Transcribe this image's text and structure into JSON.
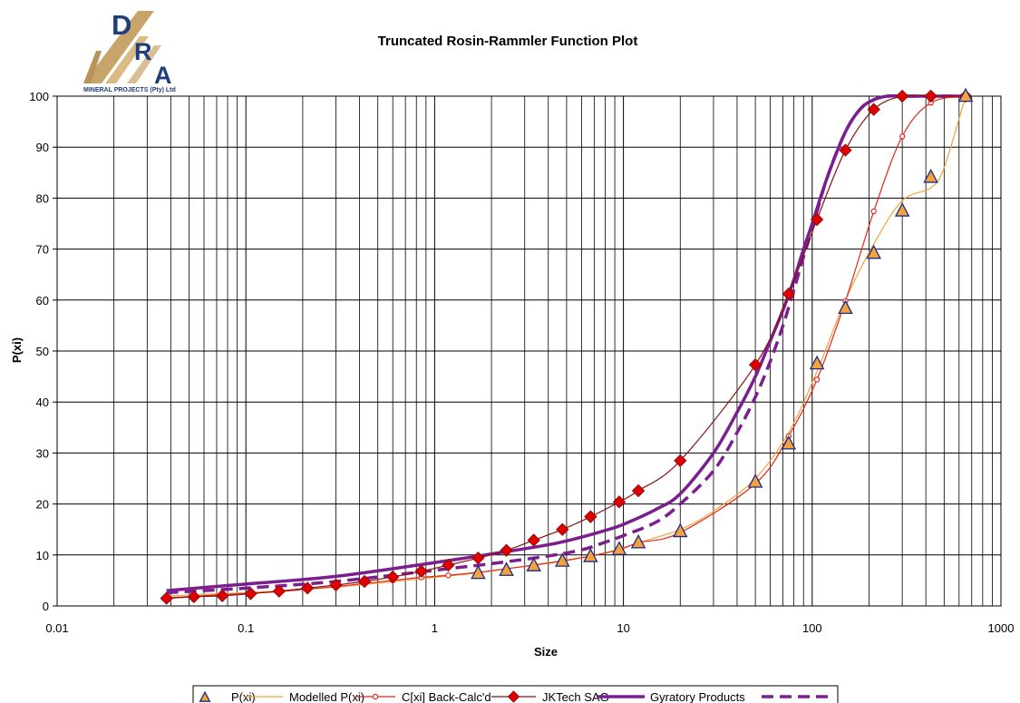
{
  "logo": {
    "letter_d": "D",
    "letter_r": "R",
    "letter_a": "A",
    "caption": "MINERAL PROJECTS (Pty) Ltd",
    "colors": {
      "gold": "#c8a46a",
      "navy": "#1f3f7a"
    }
  },
  "chart_data": {
    "type": "line",
    "title": "Truncated Rosin-Rammler Function Plot",
    "xlabel": "Size",
    "ylabel": "P(xi)",
    "x_scale": "log",
    "xlim": [
      0.01,
      1000
    ],
    "ylim": [
      0,
      100
    ],
    "x_ticks": [
      0.01,
      0.1,
      1,
      10,
      100,
      1000
    ],
    "x_tick_labels": [
      "0.01",
      "0.1",
      "1",
      "10",
      "100",
      "1000"
    ],
    "y_ticks": [
      0,
      10,
      20,
      30,
      40,
      50,
      60,
      70,
      80,
      90,
      100
    ],
    "y_tick_labels": [
      "0",
      "10",
      "20",
      "30",
      "40",
      "50",
      "60",
      "70",
      "80",
      "90",
      "100"
    ],
    "grid": true,
    "legend_position": "bottom",
    "series": [
      {
        "name": "P(xi)",
        "style": "markers",
        "marker": "triangle",
        "color": "#f4a23a",
        "edge_color": "#1a2a8c",
        "x": [
          1.7,
          2.4,
          3.35,
          4.75,
          6.7,
          9.5,
          12,
          20,
          50,
          75,
          106,
          150,
          212,
          300,
          425,
          650
        ],
        "y": [
          6.4,
          7.0,
          7.9,
          8.8,
          9.7,
          11.1,
          12.4,
          14.6,
          24.3,
          31.8,
          47.5,
          58.4,
          69.2,
          77.5,
          84.1,
          100
        ]
      },
      {
        "name": "Modelled P(xi)",
        "style": "line",
        "color": "#f4a23a",
        "x": [
          0.038,
          0.1,
          0.3,
          1,
          1.7,
          3,
          6.7,
          9.5,
          12,
          20,
          30,
          50,
          75,
          106,
          150,
          212,
          300,
          425,
          500,
          650
        ],
        "y": [
          2.0,
          2.6,
          3.7,
          5.6,
          6.5,
          7.8,
          9.8,
          11.2,
          12.4,
          15.0,
          18.6,
          25.0,
          34.0,
          46.0,
          60.0,
          71.0,
          79.5,
          82.0,
          86.0,
          100
        ]
      },
      {
        "name": "C[xi] Back-Calc'd",
        "style": "line+markers",
        "marker": "circle",
        "color": "#e6241e",
        "marker_fill": "#ffffff",
        "x": [
          0.038,
          0.053,
          0.075,
          0.106,
          0.15,
          0.212,
          0.3,
          0.425,
          0.6,
          0.85,
          1.18,
          1.7,
          2.4,
          3.35,
          4.75,
          6.7,
          9.5,
          12,
          20,
          50,
          75,
          106,
          150,
          212,
          300,
          425,
          650
        ],
        "y": [
          1.6,
          1.9,
          2.2,
          2.5,
          2.8,
          3.3,
          3.8,
          4.4,
          5.0,
          5.6,
          6.0,
          6.6,
          7.3,
          8.0,
          8.8,
          9.8,
          11.0,
          12.4,
          14.4,
          24.0,
          33.3,
          44.4,
          59.8,
          77.4,
          92.1,
          98.7,
          100
        ]
      },
      {
        "name": "JKTech SAG",
        "style": "line+markers",
        "marker": "diamond",
        "color": "#8b1010",
        "marker_fill": "#e00000",
        "x": [
          0.038,
          0.053,
          0.075,
          0.106,
          0.15,
          0.212,
          0.3,
          0.425,
          0.6,
          0.85,
          1.18,
          1.7,
          2.4,
          3.35,
          4.75,
          6.7,
          9.5,
          12,
          20,
          50,
          75,
          106,
          150,
          212,
          300,
          425,
          650
        ],
        "y": [
          1.5,
          1.8,
          2.0,
          2.4,
          2.9,
          3.5,
          4.1,
          4.8,
          5.7,
          6.8,
          8.0,
          9.4,
          10.9,
          12.9,
          15.0,
          17.5,
          20.4,
          22.6,
          28.5,
          47.3,
          61.2,
          75.8,
          89.4,
          97.4,
          100,
          100,
          100
        ]
      },
      {
        "name": "Gyratory Products",
        "style": "line",
        "dash": "solid",
        "width": 3.5,
        "color": "#7b1f8f",
        "x": [
          0.038,
          0.1,
          0.3,
          1,
          2,
          4,
          6,
          8,
          10,
          15,
          20,
          30,
          40,
          50,
          60,
          70,
          80,
          90,
          100,
          120,
          150,
          180,
          212,
          250,
          300,
          400,
          650
        ],
        "y": [
          3.0,
          4.3,
          5.8,
          8.5,
          10.2,
          12.0,
          13.5,
          14.8,
          16.0,
          19.0,
          22.0,
          30.0,
          38.0,
          45.0,
          52.0,
          58.0,
          64.0,
          70.0,
          75.0,
          84.0,
          93.0,
          97.5,
          99.3,
          100,
          100,
          100,
          100
        ]
      },
      {
        "name": "",
        "legend_entry": "dashed",
        "style": "line",
        "dash": "dashed",
        "width": 3.5,
        "color": "#7b1f8f",
        "x": [
          0.038,
          0.1,
          0.3,
          1,
          2,
          4,
          6,
          8,
          10,
          15,
          20,
          30,
          40,
          50,
          60,
          70,
          80,
          90,
          100,
          120,
          150,
          180,
          212,
          250,
          300,
          400,
          650
        ],
        "y": [
          2.6,
          3.5,
          4.8,
          7.0,
          8.3,
          9.8,
          11.0,
          12.5,
          13.8,
          16.5,
          20.0,
          26.5,
          34.0,
          41.0,
          48.0,
          55.0,
          62.0,
          68.5,
          74.0,
          84.0,
          93.0,
          97.5,
          99.3,
          100,
          100,
          100,
          100
        ]
      }
    ]
  }
}
